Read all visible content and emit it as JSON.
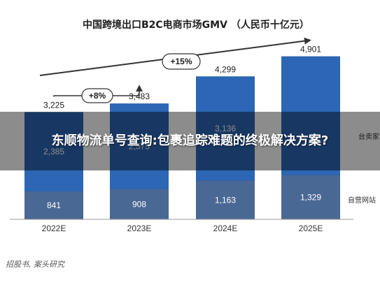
{
  "chart_data": {
    "type": "bar",
    "stacked": true,
    "title": "中国跨境出口B2C电商市场GMV （人民币十亿元）",
    "categories": [
      "2022E",
      "2023E",
      "2024E",
      "2025E"
    ],
    "totals": [
      3225,
      3483,
      4299,
      4901
    ],
    "total_labels": [
      "3,225",
      "3,483",
      "4,299",
      "4,901"
    ],
    "series": [
      {
        "name": "自营网站",
        "values": [
          841,
          908,
          1163,
          1329
        ],
        "labels": [
          "841",
          "908",
          "1,163",
          "1,329"
        ],
        "color": "#4a6894"
      },
      {
        "name": "",
        "values": [
          2385,
          2575,
          3136,
          3572
        ],
        "labels": [
          "2,385",
          "2,575",
          "3,136",
          ""
        ],
        "color": "#2c66b4"
      }
    ],
    "legend_partial": [
      "台卖家",
      "自营网站"
    ],
    "growth_annotations": [
      {
        "label": "+8%",
        "from": "2022E",
        "to": "2023E"
      },
      {
        "label": "+15%",
        "from": "2022E",
        "to": "2025E"
      }
    ],
    "ylim": [
      0,
      5400
    ],
    "source": "招股书, 案头研究",
    "colors": {
      "top_band": "#2a3b5a",
      "arrow": "#333333"
    }
  },
  "overlay": {
    "banner_text": "东顺物流单号查询:包裹追踪难题的终极解决方案?"
  }
}
